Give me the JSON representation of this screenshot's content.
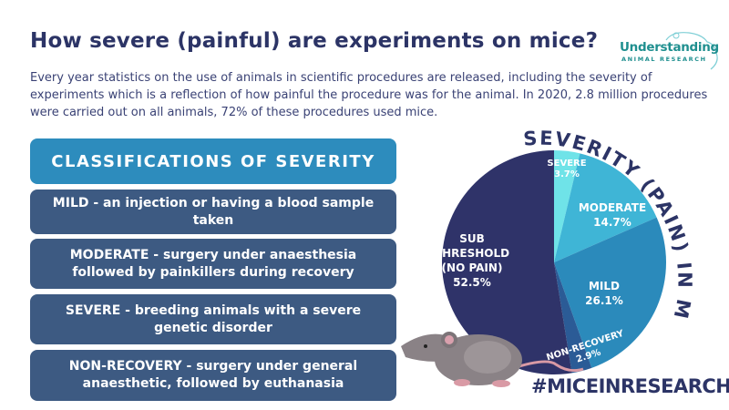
{
  "header": {
    "title": "How severe (painful) are experiments on mice?",
    "intro": "Every year statistics on the use of animals in scientific procedures are released, including the severity of experiments which is a reflection of how painful the procedure was for the animal. In 2020, 2.8 million procedures were carried out on all animals, 72% of these procedures used mice."
  },
  "logo": {
    "line1": "Understanding",
    "line2": "ANIMAL RESEARCH"
  },
  "classifications": {
    "heading": "CLASSIFICATIONS OF SEVERITY",
    "items": [
      {
        "term": "MILD",
        "desc": " - an injection or having a blood sample taken"
      },
      {
        "term": "MODERATE",
        "desc": " - surgery under anaesthesia followed by painkillers during recovery"
      },
      {
        "term": "SEVERE",
        "desc": " - breeding animals with a severe genetic disorder"
      },
      {
        "term": "NON-RECOVERY",
        "desc": " - surgery under general anaesthetic, followed by euthanasia"
      }
    ]
  },
  "hashtag": "#MICEINRESEARCH",
  "chart_data": {
    "type": "pie",
    "title": "SEVERITY (PAIN) IN MICE",
    "slices": [
      {
        "label": "SEVERE",
        "value": 3.7,
        "display": "3.7%",
        "color": "#6fe3e8"
      },
      {
        "label": "MODERATE",
        "value": 14.7,
        "display": "14.7%",
        "color": "#3fb5d6"
      },
      {
        "label": "MILD",
        "value": 26.1,
        "display": "26.1%",
        "color": "#2b8abb"
      },
      {
        "label": "NON-RECOVERY",
        "value": 2.9,
        "display": "2.9%",
        "color": "#2b5b96"
      },
      {
        "label": "SUB THRESHOLD (NO PAIN)",
        "value": 52.5,
        "display": "52.5%",
        "color": "#2f3369"
      }
    ]
  }
}
